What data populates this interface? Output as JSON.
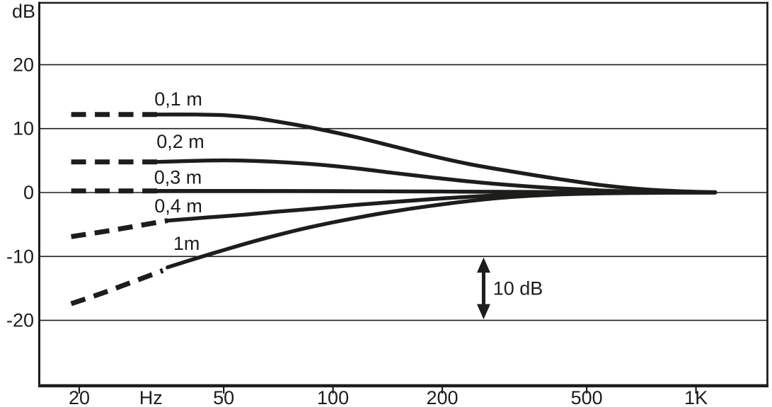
{
  "chart_data": {
    "type": "line",
    "title": "",
    "xlabel": "Hz",
    "ylabel": "dB",
    "x_scale": "log",
    "xlim": [
      18.5,
      1250
    ],
    "ylim": [
      -30,
      30
    ],
    "grid": "horizontal",
    "legend_position": "inline-labels",
    "line_color": "#1d1d1b",
    "x_ticks": [
      20,
      50,
      100,
      200,
      500,
      1000
    ],
    "x_tick_labels": [
      "20",
      "50",
      "100",
      "200",
      "500",
      "1K"
    ],
    "x_unit_label": "Hz",
    "x_unit_label_pos_f": 31.5,
    "y_ticks": [
      20,
      10,
      0,
      -10,
      -20
    ],
    "y_tick_labels": [
      "20",
      "10",
      "0",
      "-10",
      "-20"
    ],
    "y_axis_unit": "dB",
    "series": [
      {
        "name": "0,1 m",
        "label_pos": {
          "f": 37.5,
          "db": 14.6
        },
        "points_dashed": [
          [
            19,
            12.2
          ],
          [
            24,
            12.2
          ],
          [
            33,
            12.2
          ]
        ],
        "points_solid": [
          [
            33,
            12.2
          ],
          [
            42,
            12.2
          ],
          [
            50,
            12.1
          ],
          [
            60,
            11.7
          ],
          [
            72,
            11.0
          ],
          [
            90,
            10.0
          ],
          [
            115,
            8.7
          ],
          [
            145,
            7.3
          ],
          [
            185,
            5.8
          ],
          [
            240,
            4.4
          ],
          [
            310,
            3.3
          ],
          [
            420,
            2.1
          ],
          [
            560,
            1.1
          ],
          [
            720,
            0.5
          ],
          [
            900,
            0.2
          ],
          [
            1130,
            0.05
          ]
        ]
      },
      {
        "name": "0,2 m",
        "label_pos": {
          "f": 38.0,
          "db": 8.0
        },
        "points_dashed": [
          [
            19,
            4.8
          ],
          [
            24,
            4.8
          ],
          [
            33,
            4.8
          ]
        ],
        "points_solid": [
          [
            33,
            4.8
          ],
          [
            45,
            5.0
          ],
          [
            56,
            5.0
          ],
          [
            70,
            4.8
          ],
          [
            90,
            4.4
          ],
          [
            115,
            3.8
          ],
          [
            145,
            3.1
          ],
          [
            185,
            2.4
          ],
          [
            240,
            1.7
          ],
          [
            310,
            1.15
          ],
          [
            420,
            0.65
          ],
          [
            560,
            0.3
          ],
          [
            720,
            0.12
          ],
          [
            900,
            0.05
          ],
          [
            1130,
            0.02
          ]
        ]
      },
      {
        "name": "0,3 m",
        "label_pos": {
          "f": 37.4,
          "db": 2.4
        },
        "points_dashed": [
          [
            19,
            0.25
          ],
          [
            24,
            0.25
          ],
          [
            33,
            0.25
          ]
        ],
        "points_solid": [
          [
            33,
            0.25
          ],
          [
            60,
            0.25
          ],
          [
            100,
            0.22
          ],
          [
            200,
            0.15
          ],
          [
            400,
            0.08
          ],
          [
            700,
            0.03
          ],
          [
            1130,
            0
          ]
        ]
      },
      {
        "name": "0,4 m",
        "label_pos": {
          "f": 37.5,
          "db": -2.1
        },
        "points_dashed": [
          [
            19,
            -6.9
          ],
          [
            24,
            -6.0
          ],
          [
            29,
            -5.2
          ],
          [
            35,
            -4.4
          ]
        ],
        "points_solid": [
          [
            35,
            -4.4
          ],
          [
            45,
            -3.9
          ],
          [
            56,
            -3.5
          ],
          [
            70,
            -3.0
          ],
          [
            90,
            -2.5
          ],
          [
            115,
            -1.95
          ],
          [
            145,
            -1.5
          ],
          [
            185,
            -1.05
          ],
          [
            240,
            -0.65
          ],
          [
            310,
            -0.35
          ],
          [
            420,
            -0.15
          ],
          [
            600,
            -0.05
          ],
          [
            900,
            0
          ],
          [
            1130,
            0
          ]
        ]
      },
      {
        "name": "1m",
        "label_pos": {
          "f": 39.5,
          "db": -8.0
        },
        "points_dashed": [
          [
            19,
            -17.4
          ],
          [
            23,
            -15.8
          ],
          [
            28,
            -14.0
          ],
          [
            34,
            -12.2
          ]
        ],
        "points_solid": [
          [
            35,
            -11.7
          ],
          [
            42,
            -10.3
          ],
          [
            50,
            -9.0
          ],
          [
            60,
            -7.7
          ],
          [
            72,
            -6.5
          ],
          [
            90,
            -5.2
          ],
          [
            115,
            -4.0
          ],
          [
            145,
            -3.0
          ],
          [
            185,
            -2.1
          ],
          [
            240,
            -1.3
          ],
          [
            310,
            -0.7
          ],
          [
            420,
            -0.3
          ],
          [
            600,
            -0.1
          ],
          [
            900,
            -0.02
          ],
          [
            1130,
            0
          ]
        ]
      }
    ],
    "annotation": {
      "label": "10 dB",
      "arrow_f": 260,
      "from_db": -10,
      "to_db": -20,
      "label_f": 276,
      "label_db": -15
    }
  }
}
